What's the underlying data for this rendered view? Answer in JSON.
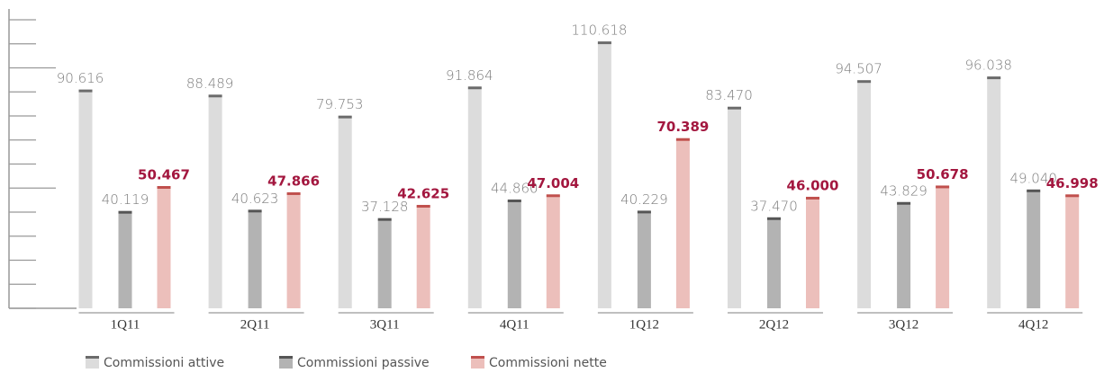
{
  "chart_data": {
    "type": "bar",
    "categories": [
      "1Q11",
      "2Q11",
      "3Q11",
      "4Q11",
      "1Q12",
      "2Q12",
      "3Q12",
      "4Q12"
    ],
    "series": [
      {
        "name": "Commissioni attive",
        "color": "#dcdcdc",
        "cap": "#6b6b6b",
        "values": [
          90.616,
          88.489,
          79.753,
          91.864,
          110.618,
          83.47,
          94.507,
          96.038
        ],
        "value_labels": [
          "90.616",
          "88.489",
          "79.753",
          "91.864",
          "110.618",
          "83.470",
          "94.507",
          "96.038"
        ]
      },
      {
        "name": "Commissioni passive",
        "color": "#b3b3b3",
        "cap": "#555555",
        "values": [
          40.119,
          40.623,
          37.128,
          44.86,
          40.229,
          37.47,
          43.829,
          49.04
        ],
        "value_labels": [
          "40.119",
          "40.623",
          "37.128",
          "44.860",
          "40.229",
          "37.470",
          "43.829",
          "49.040"
        ]
      },
      {
        "name": "Commissioni nette",
        "color": "#ecbfbb",
        "cap": "#c0504d",
        "values": [
          50.467,
          47.866,
          42.625,
          47.004,
          70.389,
          46.0,
          50.678,
          46.998
        ],
        "value_labels": [
          "50.467",
          "47.866",
          "42.625",
          "47.004",
          "70.389",
          "46.000",
          "50.678",
          "46.998"
        ]
      }
    ],
    "ylim": [
      0,
      120
    ],
    "yticks": [
      0,
      10,
      20,
      30,
      40,
      50,
      60,
      70,
      80,
      90,
      100,
      110,
      120
    ]
  }
}
